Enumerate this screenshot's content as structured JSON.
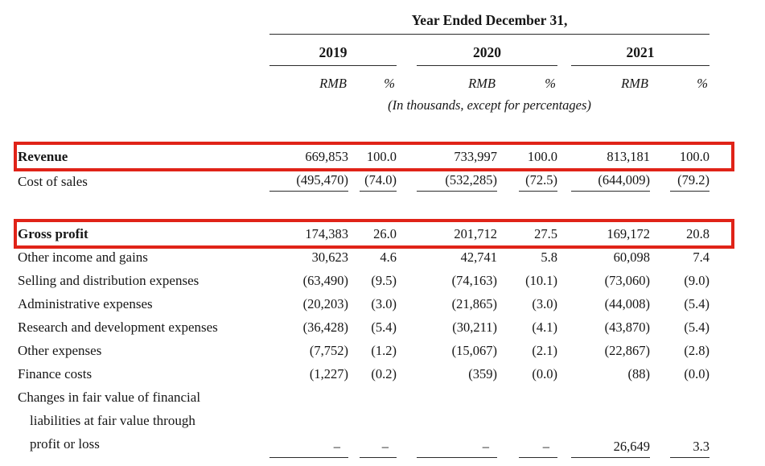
{
  "table": {
    "period_header": "Year Ended December 31,",
    "note": "(In thousands, except for percentages)",
    "year_groups": [
      {
        "year": "2019",
        "currency_label": "RMB",
        "percent_label": "%"
      },
      {
        "year": "2020",
        "currency_label": "RMB",
        "percent_label": "%"
      },
      {
        "year": "2021",
        "currency_label": "RMB",
        "percent_label": "%"
      }
    ],
    "rows": [
      {
        "label": "Revenue",
        "bold": true,
        "highlighted": true,
        "top_rule": true,
        "values": [
          "669,853",
          "100.0",
          "733,997",
          "100.0",
          "813,181",
          "100.0"
        ]
      },
      {
        "label": "Cost of sales",
        "underline_values": true,
        "values": [
          "(495,470)",
          "(74.0)",
          "(532,285)",
          "(72.5)",
          "(644,009)",
          "(79.2)"
        ]
      },
      {
        "label": "Gross profit",
        "bold": true,
        "highlighted": true,
        "gap_before": true,
        "values": [
          "174,383",
          "26.0",
          "201,712",
          "27.5",
          "169,172",
          "20.8"
        ]
      },
      {
        "label": "Other income and gains",
        "values": [
          "30,623",
          "4.6",
          "42,741",
          "5.8",
          "60,098",
          "7.4"
        ]
      },
      {
        "label": "Selling and distribution expenses",
        "values": [
          "(63,490)",
          "(9.5)",
          "(74,163)",
          "(10.1)",
          "(73,060)",
          "(9.0)"
        ]
      },
      {
        "label": "Administrative expenses",
        "values": [
          "(20,203)",
          "(3.0)",
          "(21,865)",
          "(3.0)",
          "(44,008)",
          "(5.4)"
        ]
      },
      {
        "label": "Research and development expenses",
        "values": [
          "(36,428)",
          "(5.4)",
          "(30,211)",
          "(4.1)",
          "(43,870)",
          "(5.4)"
        ]
      },
      {
        "label": "Other expenses",
        "values": [
          "(7,752)",
          "(1.2)",
          "(15,067)",
          "(2.1)",
          "(22,867)",
          "(2.8)"
        ]
      },
      {
        "label": "Finance costs",
        "values": [
          "(1,227)",
          "(0.2)",
          "(359)",
          "(0.0)",
          "(88)",
          "(0.0)"
        ]
      },
      {
        "label": "Changes in fair value of financial liabilities at fair value through profit or loss",
        "label_lines": [
          "Changes in fair value of financial",
          "liabilities at fair value through",
          "profit or loss"
        ],
        "underline_values": true,
        "values": [
          "–",
          "–",
          "–",
          "–",
          "26,649",
          "3.3"
        ]
      }
    ]
  },
  "highlight": {
    "color": "#e02318"
  }
}
